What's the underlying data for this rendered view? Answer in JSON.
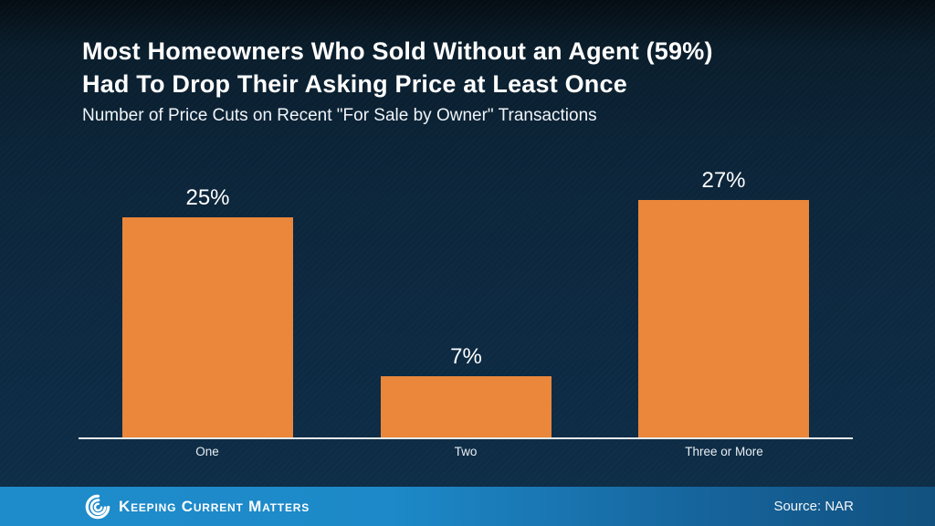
{
  "header": {
    "title_line1": "Most Homeowners Who Sold Without an Agent (59%)",
    "title_line2": "Had To Drop Their Asking Price at Least Once",
    "subtitle": "Number of Price Cuts on Recent \"For Sale by Owner\" Transactions"
  },
  "chart_data": {
    "type": "bar",
    "title": "Most Homeowners Who Sold Without an Agent (59%) Had To Drop Their Asking Price at Least Once",
    "subtitle": "Number of Price Cuts on Recent \"For Sale by Owner\" Transactions",
    "categories": [
      "One",
      "Two",
      "Three or More"
    ],
    "values": [
      25,
      7,
      27
    ],
    "value_labels": [
      "25%",
      "7%",
      "27%"
    ],
    "xlabel": "",
    "ylabel": "",
    "ylim": [
      0,
      30
    ],
    "grid": false,
    "legend": false,
    "bar_color": "#ea873b",
    "axis_line_color": "#e3ebf1",
    "background_color": "#0d2941"
  },
  "footer": {
    "brand": "Keeping Current Matters",
    "source": "Source: NAR",
    "band_color_left": "#1e8ccb",
    "band_color_right": "#11517f"
  }
}
